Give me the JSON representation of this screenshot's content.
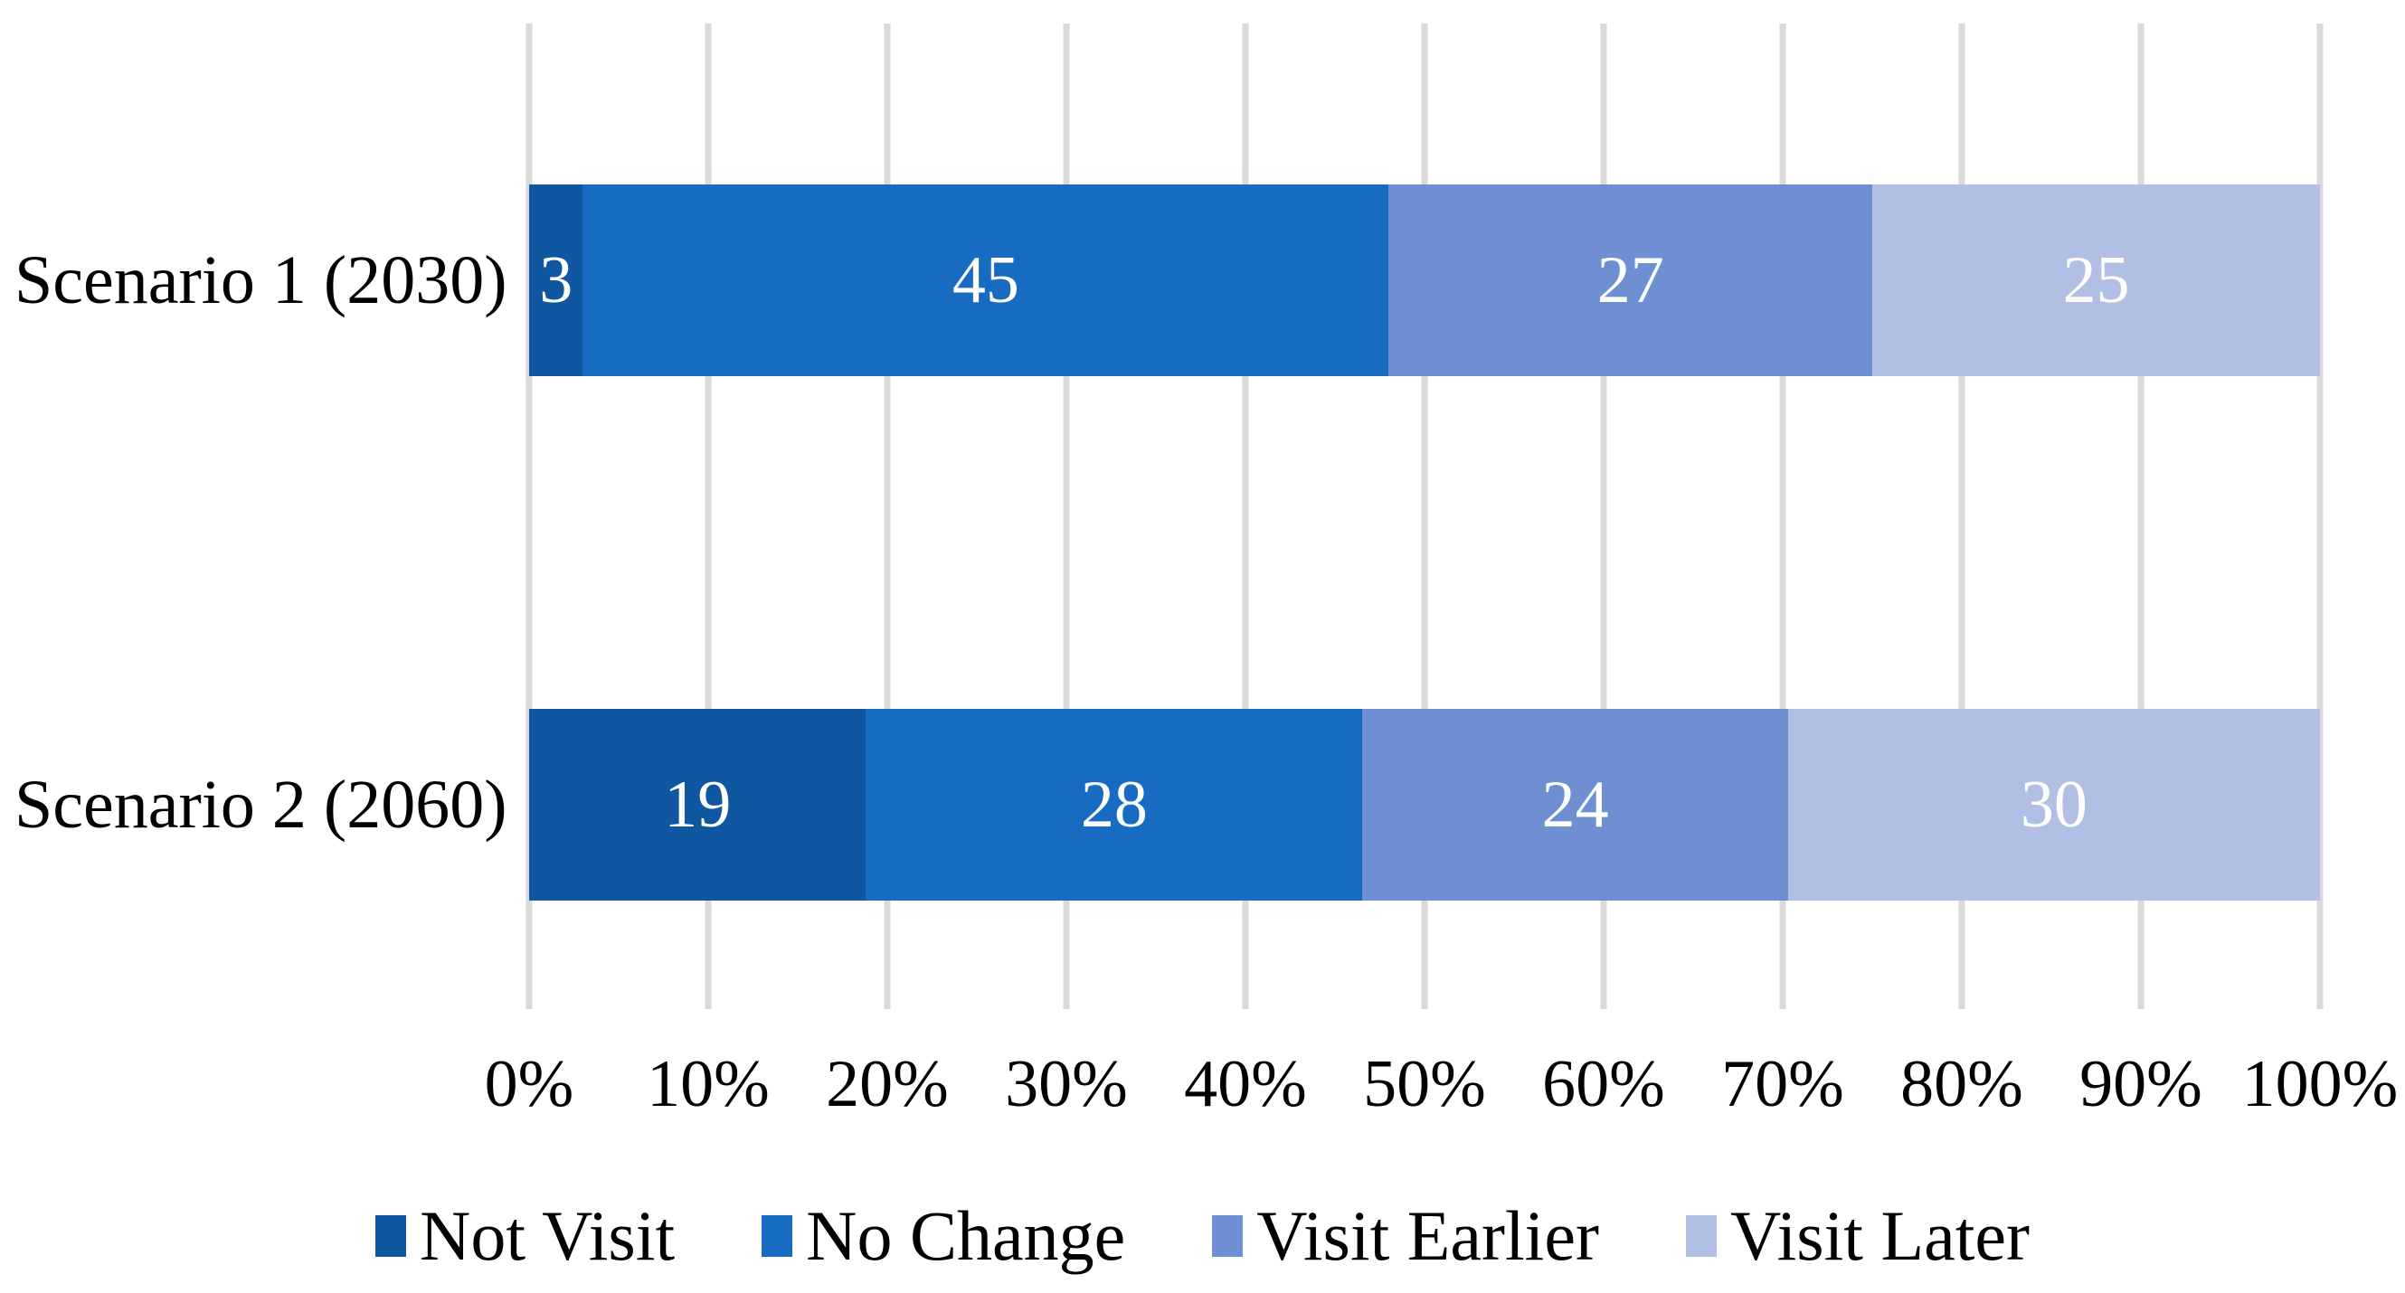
{
  "figure": {
    "background_color": "#FFFFFF",
    "text_color": "#000000"
  },
  "chart_data": {
    "type": "bar",
    "orientation": "horizontal",
    "stacked": true,
    "normalized_100_percent": true,
    "title": "",
    "xlabel": "",
    "ylabel": "",
    "categories": [
      "Scenario 1 (2030)",
      "Scenario 2 (2060)"
    ],
    "series": [
      {
        "name": "Not Visit",
        "color": "#0F57A0",
        "values": [
          3,
          19
        ]
      },
      {
        "name": "No Change",
        "color": "#176BC0",
        "values": [
          45,
          28
        ]
      },
      {
        "name": "Visit Earlier",
        "color": "#6E90D2",
        "values": [
          27,
          24
        ]
      },
      {
        "name": "Visit Later",
        "color": "#B2BFE4",
        "values": [
          25,
          30
        ]
      }
    ],
    "value_labels": {
      "shown": true,
      "color": "#FFFFFF"
    },
    "x_axis": {
      "min": 0,
      "max": 100,
      "tick_step": 10,
      "tick_labels": [
        "0%",
        "10%",
        "20%",
        "30%",
        "40%",
        "50%",
        "60%",
        "70%",
        "80%",
        "90%",
        "100%"
      ]
    },
    "gridlines": {
      "on": true,
      "orientation": "vertical",
      "color": "#D9D9D9"
    },
    "legend": {
      "position": "bottom",
      "entries": [
        "Not Visit",
        "No Change",
        "Visit Earlier",
        "Visit Later"
      ]
    }
  }
}
